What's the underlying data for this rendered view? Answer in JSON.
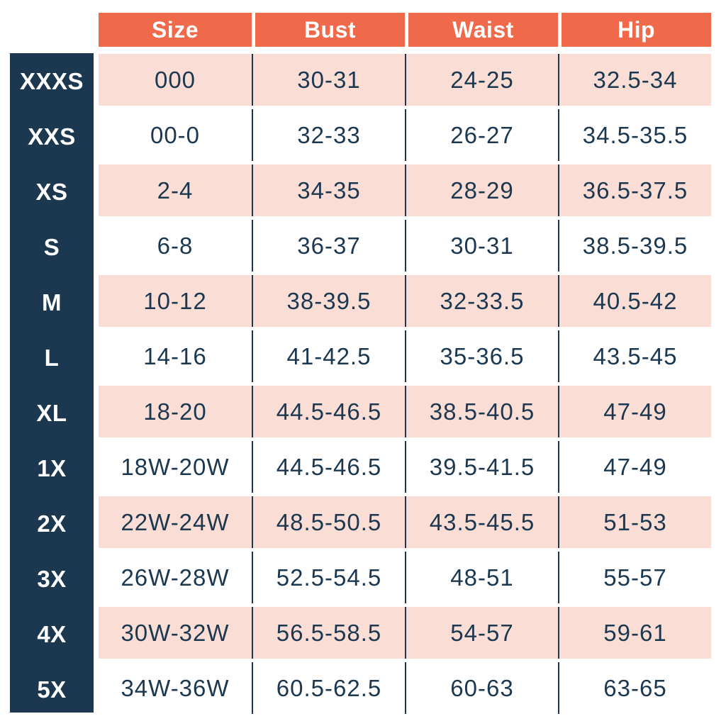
{
  "chart_data": {
    "type": "table",
    "title": "",
    "columns": [
      "Size",
      "Bust",
      "Waist",
      "Hip"
    ],
    "row_header": "size-name",
    "rows": [
      {
        "label": "XXXS",
        "size": "000",
        "bust": "30-31",
        "waist": "24-25",
        "hip": "32.5-34"
      },
      {
        "label": "XXS",
        "size": "00-0",
        "bust": "32-33",
        "waist": "26-27",
        "hip": "34.5-35.5"
      },
      {
        "label": "XS",
        "size": "2-4",
        "bust": "34-35",
        "waist": "28-29",
        "hip": "36.5-37.5"
      },
      {
        "label": "S",
        "size": "6-8",
        "bust": "36-37",
        "waist": "30-31",
        "hip": "38.5-39.5"
      },
      {
        "label": "M",
        "size": "10-12",
        "bust": "38-39.5",
        "waist": "32-33.5",
        "hip": "40.5-42"
      },
      {
        "label": "L",
        "size": "14-16",
        "bust": "41-42.5",
        "waist": "35-36.5",
        "hip": "43.5-45"
      },
      {
        "label": "XL",
        "size": "18-20",
        "bust": "44.5-46.5",
        "waist": "38.5-40.5",
        "hip": "47-49"
      },
      {
        "label": "1X",
        "size": "18W-20W",
        "bust": "44.5-46.5",
        "waist": "39.5-41.5",
        "hip": "47-49"
      },
      {
        "label": "2X",
        "size": "22W-24W",
        "bust": "48.5-50.5",
        "waist": "43.5-45.5",
        "hip": "51-53"
      },
      {
        "label": "3X",
        "size": "26W-28W",
        "bust": "52.5-54.5",
        "waist": "48-51",
        "hip": "55-57"
      },
      {
        "label": "4X",
        "size": "30W-32W",
        "bust": "56.5-58.5",
        "waist": "54-57",
        "hip": "59-61"
      },
      {
        "label": "5X",
        "size": "34W-36W",
        "bust": "60.5-62.5",
        "waist": "60-63",
        "hip": "63-65"
      }
    ],
    "layout": {
      "header_position": "top",
      "row_header_position": "left",
      "row_striping": [
        "pink",
        "white"
      ],
      "grid": "thin vertical dividers between data columns"
    }
  },
  "colors": {
    "header_bg": "#F0694B",
    "header_text": "#FFFFFF",
    "row_header_bg": "#1C3850",
    "row_header_text": "#FFFFFF",
    "stripe_pink": "#FADDD4",
    "stripe_white": "#FFFFFF",
    "cell_text": "#1C3850",
    "divider": "#1C3850",
    "page_bg": "#FFFFFF"
  }
}
